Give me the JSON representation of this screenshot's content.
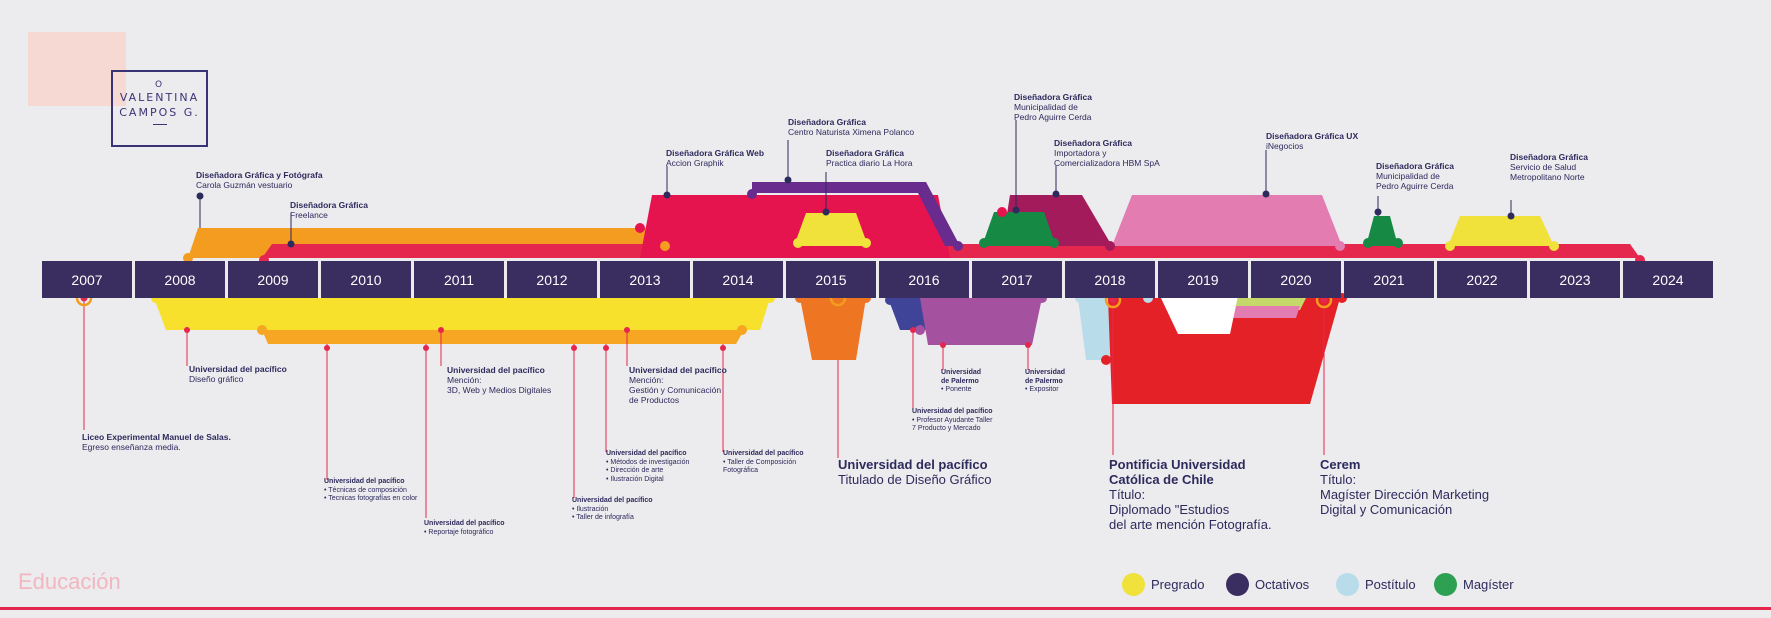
{
  "logo": {
    "initial": "O",
    "line1": "VALENTINA",
    "line2": "CAMPOS G."
  },
  "years": [
    "2007",
    "2008",
    "2009",
    "2010",
    "2011",
    "2012",
    "2013",
    "2014",
    "2015",
    "2016",
    "2017",
    "2018",
    "2019",
    "2020",
    "2021",
    "2022",
    "2023",
    "2024"
  ],
  "work": [
    {
      "title": "Diseñadora Gráfica y Fotógrafa",
      "place": "Carola Guzmán vestuario"
    },
    {
      "title": "Diseñadora Gráfica",
      "place": "Freelance"
    },
    {
      "title": "Diseñadora Gráfica Web",
      "place": "Accion Graphik"
    },
    {
      "title": "Diseñadora Gráfica",
      "place": "Centro Naturista Ximena Polanco"
    },
    {
      "title": "Diseñadora Gráfica",
      "place": "Practica diario La Hora"
    },
    {
      "title": "Diseñadora Gráfica",
      "place": "Municipalidad de\nPedro Aguirre Cerda"
    },
    {
      "title": "Diseñadora Gráfica",
      "place": "Importadora y\nComercializadora HBM SpA"
    },
    {
      "title": "Diseñadora Gráfica UX",
      "place": "iNegocios"
    },
    {
      "title": "Diseñadora Gráfica",
      "place": "Municipalidad de\nPedro Aguirre Cerda"
    },
    {
      "title": "Diseñadora Gráfica",
      "place": "Servicio de Salud\nMetropolitano Norte"
    }
  ],
  "education": [
    {
      "title": "Liceo Experimental Manuel de Salas.",
      "detail": "Egreso enseñanza media."
    },
    {
      "title": "Universidad del pacífico",
      "detail": "Diseño gráfico"
    },
    {
      "title": "Universidad del pacífico",
      "detail": "Mención:\n3D, Web y Medios Digitales"
    },
    {
      "title": "Universidad del pacífico",
      "detail": "Mención:\nGestión y Comunicación\nde Productos"
    },
    {
      "title": "Universidad del pacífico",
      "detail": "• Técnicas de composición\n• Tecnicas fotografías en color"
    },
    {
      "title": "Universidad del pacífico",
      "detail": "•  Reportaje fotográfico"
    },
    {
      "title": "Universidad del pacífico",
      "detail": "• Ilustración\n• Taller de infografía"
    },
    {
      "title": "Universidad del pacífico",
      "detail": "• Métodos de investigación\n• Dirección de arte\n• Ilustración Digital"
    },
    {
      "title": "Universidad del pacífico",
      "detail": "• Taller de Composición\n  Fotográfica"
    },
    {
      "title": "Universidad del pacífico",
      "detail": "Titulado de Diseño Gráfico"
    },
    {
      "title": "Universidad\nde Palermo",
      "detail": "• Ponente"
    },
    {
      "title": "Universidad\nde Palermo",
      "detail": "• Expositor"
    },
    {
      "title": "Universidad del pacífico",
      "detail": "• Profesor Ayudante Taller\n7 Producto y Mercado"
    },
    {
      "title": "Pontificia Universidad\nCatólica de Chile",
      "detail": "Título:\n Diplomado \"Estudios\n del arte mención Fotografía."
    },
    {
      "title": "Cerem",
      "detail": "Título:\nMagíster Dirección Marketing\nDigital y Comunicación"
    }
  ],
  "section_title": "Educación",
  "legend": [
    {
      "label": "Pregrado",
      "color": "#f0e23a"
    },
    {
      "label": "Octativos",
      "color": "#3a2d5f"
    },
    {
      "label": "Postítulo",
      "color": "#b9dcea"
    },
    {
      "label": "Magíster",
      "color": "#2da052"
    }
  ]
}
